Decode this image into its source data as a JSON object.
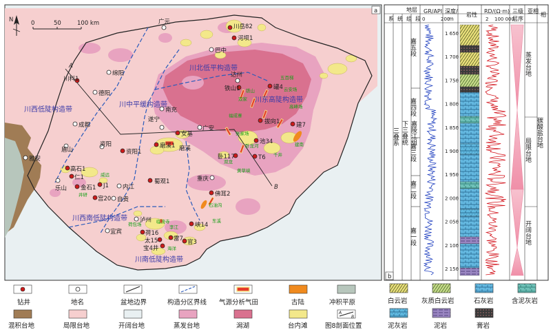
{
  "map": {
    "panel_a": "a",
    "panel_b": "b",
    "north": "N",
    "scale": {
      "ticks": [
        "0",
        "50",
        "100 km"
      ]
    },
    "zones": [
      "川北低平构造带",
      "川中平缓构造带",
      "川东高陡构造带",
      "川西低陡构造带",
      "川西南低陡构造带",
      "川南低陡构造带"
    ],
    "cities": [
      "广元",
      "巴中",
      "绵阳",
      "德阳",
      "南充",
      "达州",
      "遂宁",
      "成都",
      "广安",
      "眉山",
      "资阳",
      "重庆",
      "雅安",
      "乐山",
      "内江",
      "自贡",
      "泸州",
      "宜宾"
    ],
    "wells": [
      "川岳82",
      "河坝1",
      "川科1",
      "铁山1",
      "罐4",
      "女基",
      "磨溪1",
      "磨溪",
      "拔向1",
      "池34",
      "建7",
      "卧117",
      "T6",
      "资阳1",
      "高石1",
      "仁1",
      "金石1",
      "J1",
      "蜀观1",
      "宫20",
      "佛耳2",
      "峡14",
      "荷16",
      "太15",
      "宝4井",
      "官3",
      "雷7"
    ],
    "gas_fields": [
      "五百梯",
      "铁山",
      "双家",
      "云安场",
      "高峰场",
      "福成寨",
      "建南",
      "张家场",
      "卧龙河",
      "双龙",
      "千井",
      "黄草峡",
      "石油沟",
      "东溪",
      "临流寺",
      "威远",
      "井研",
      "荷包场",
      "李江",
      "海洋"
    ],
    "axis_labels": [
      "A",
      "B"
    ],
    "legend": {
      "well": "钻井",
      "place": "地名",
      "basin_edge": "盆地边界",
      "zone_line": "构造分区界线",
      "gas_field": "气源分析气田",
      "old_land": "古陆",
      "alluvial": "冲积平原",
      "mixed_platform": "混积台地",
      "restricted_platform": "局限台地",
      "open_platform": "开阔台地",
      "evaporite_platform": "蒸发台地",
      "lagoon": "潟湖",
      "shoal": "台内滩",
      "profile": "图8剖面位置"
    }
  },
  "column": {
    "hdr_strata": "地层",
    "hdr_system": "系",
    "hdr_series": "统",
    "hdr_group": "组",
    "hdr_member": "段",
    "hdr_gr": "GR/API",
    "gr_scale": [
      "0",
      "200"
    ],
    "hdr_depth": "深度/",
    "hdr_depth_unit": "m",
    "hdr_lith": "岩性",
    "hdr_rd": "RD/(Ω·m)",
    "rd_scale": [
      "2",
      "100 000"
    ],
    "hdr_seq": "三级",
    "hdr_seq2": "层序",
    "hdr_subfacies": "亚相",
    "hdr_facies": "相",
    "system": "三叠系",
    "series": "下三叠统",
    "group": "嘉陵江组",
    "members": [
      "嘉五段",
      "嘉四段",
      "嘉三段",
      "嘉二段",
      "嘉一段"
    ],
    "depths": [
      "1 650",
      "1 700",
      "1 750",
      "1 800",
      "1 850",
      "1 900",
      "1 950",
      "2 000",
      "2 050",
      "2 100",
      "2 150"
    ],
    "subfacies": [
      "蒸发台地",
      "局限台地",
      "开阔台地"
    ],
    "facies": "碳酸盐台地"
  },
  "lith_legend": {
    "dolomite": "白云岩",
    "limy_dolomite": "灰质白云岩",
    "limestone": "石灰岩",
    "muddy_limestone": "含泥灰岩",
    "marl": "泥灰岩",
    "mudstone": "泥岩",
    "gypsum": "膏岩"
  },
  "colors": {
    "restricted": "#f6cfcf",
    "evaporite": "#e8a3c0",
    "lagoon": "#d9718f",
    "shoal": "#f3e88a",
    "mixed": "#a07c55",
    "alluvial": "#b7c6bc",
    "open": "#e9f0f2",
    "old_land": "#f08a1e",
    "zone_line": "#2b5bbb",
    "well": "#cc1b1b"
  }
}
